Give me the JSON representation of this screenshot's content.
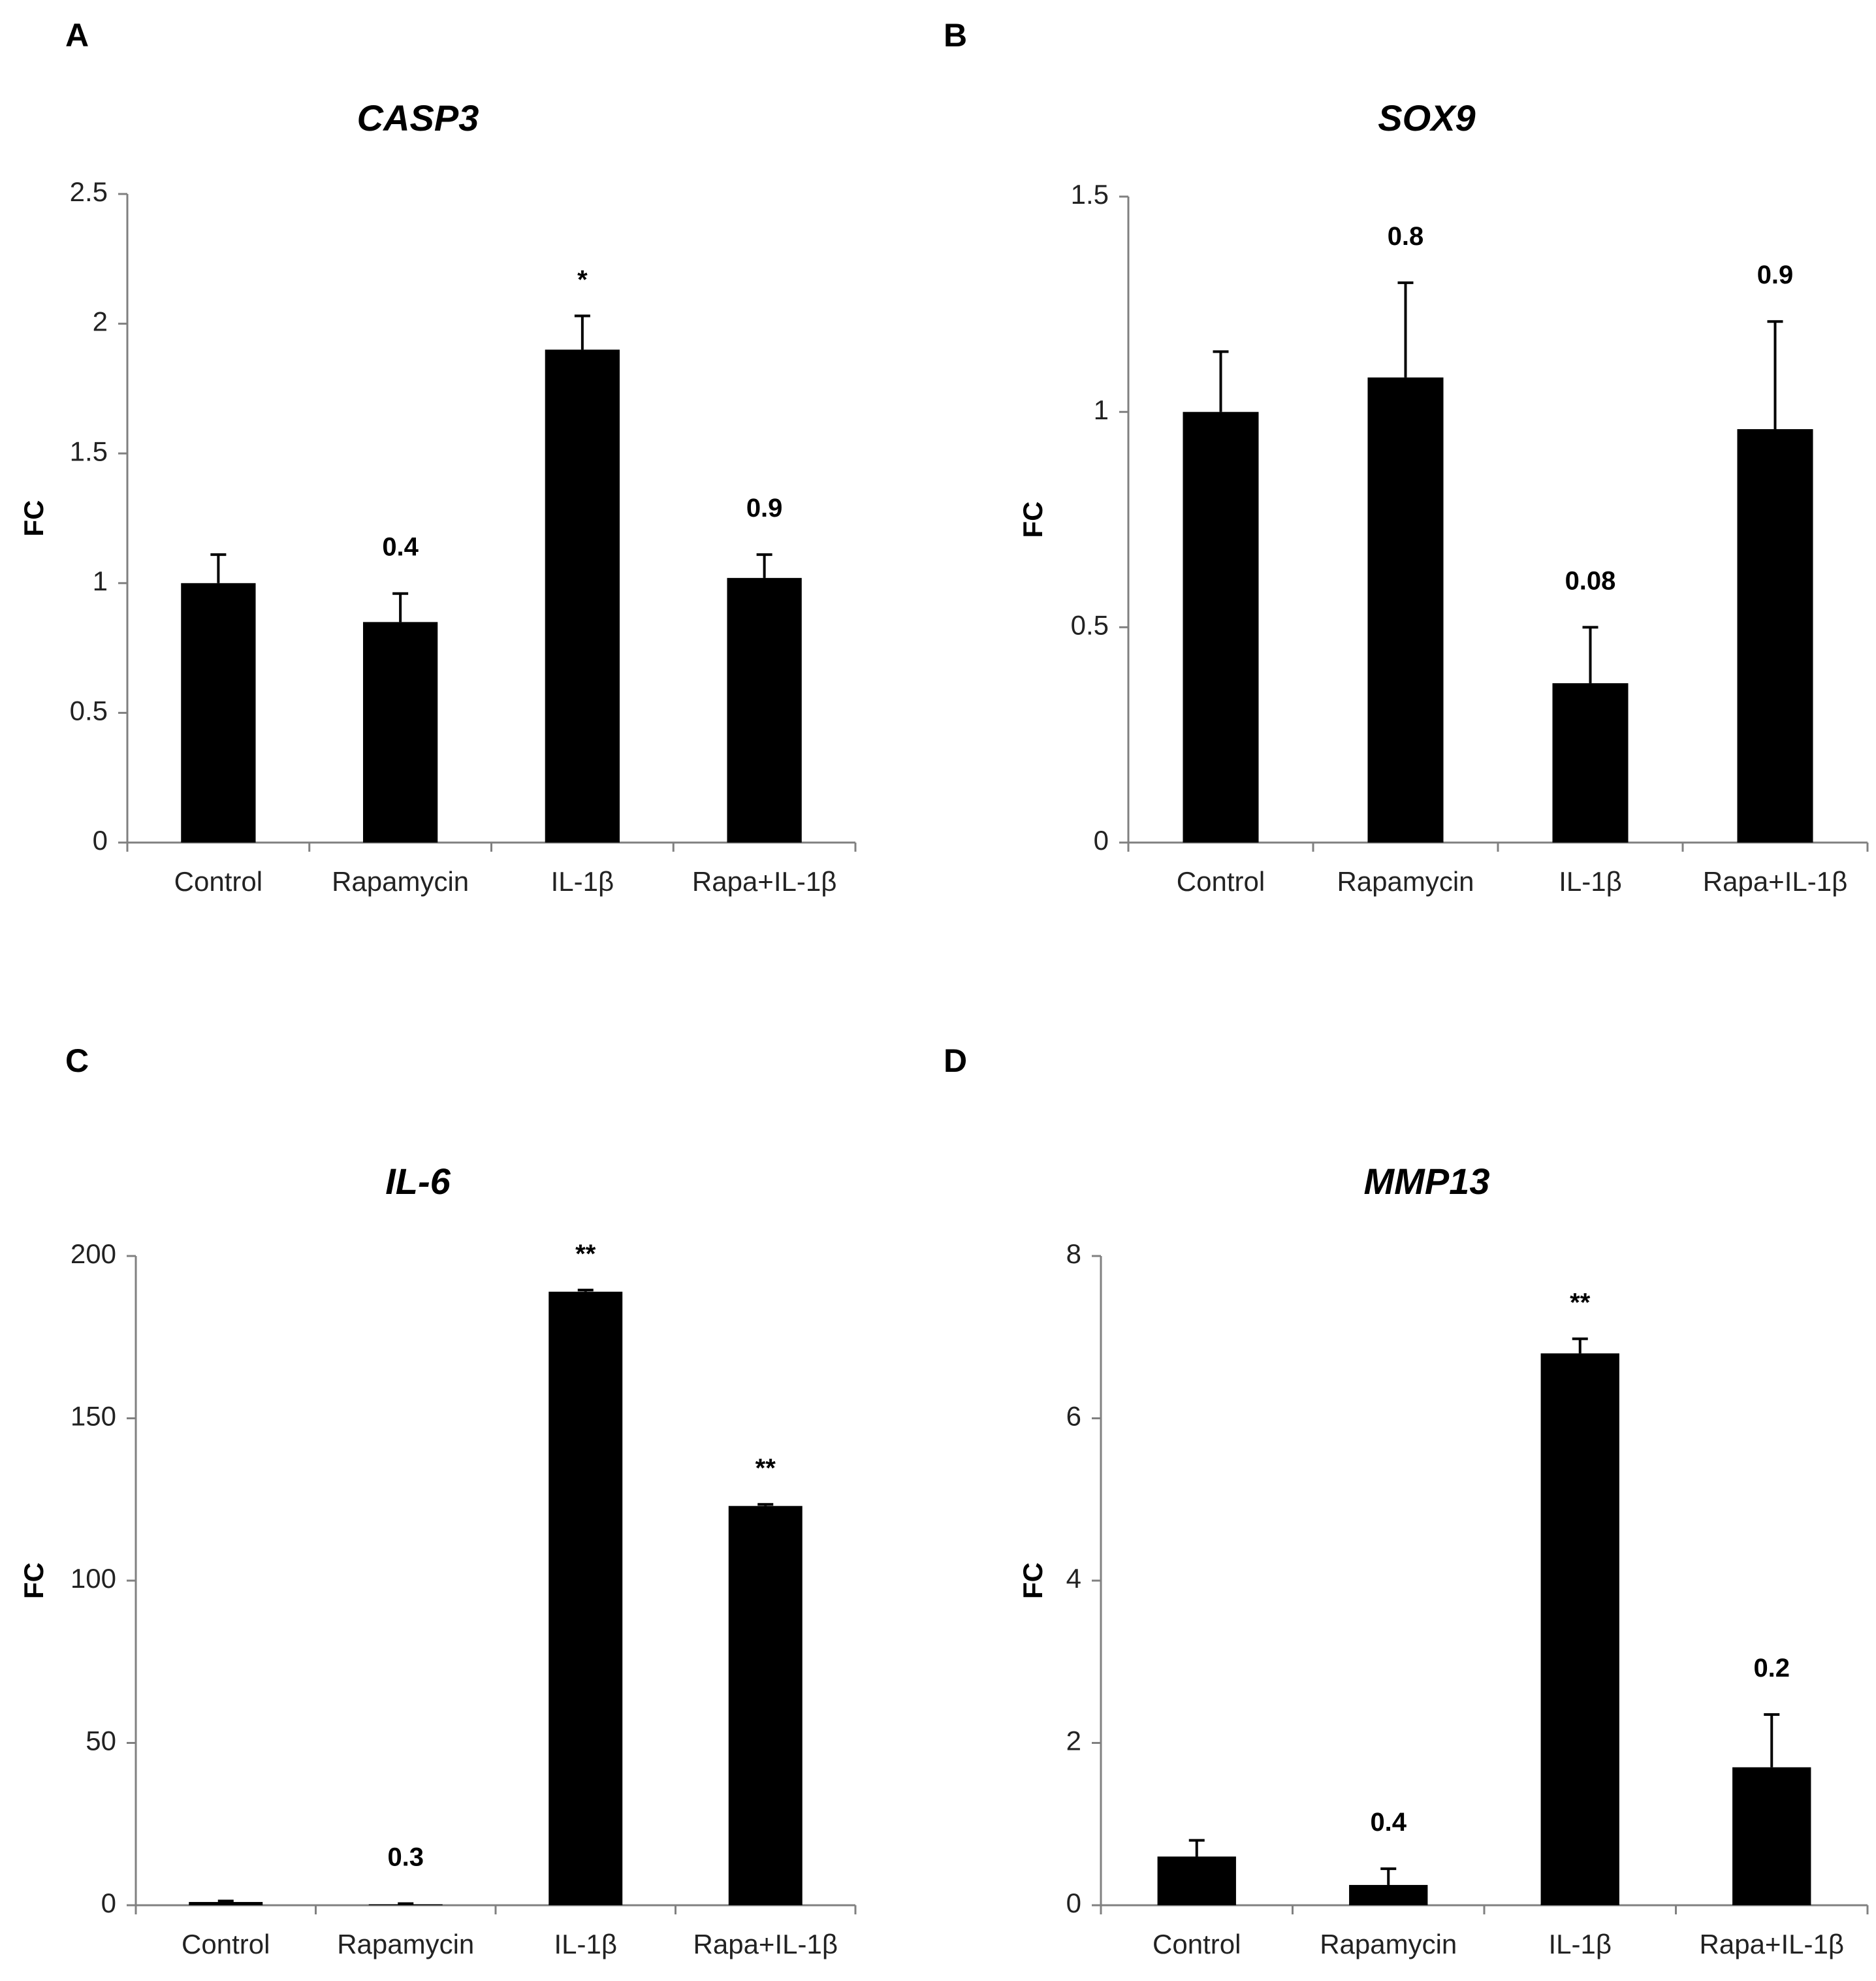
{
  "chart_data": [
    {
      "type": "bar",
      "panel": "A",
      "title": "CASP3",
      "ylabel": "FC",
      "ylim": [
        0,
        2.5
      ],
      "yticks": [
        "0",
        "0.5",
        "1",
        "1.5",
        "2",
        "2.5"
      ],
      "categories": [
        "Control",
        "Rapamycin",
        "IL-1β",
        "Rapa+IL-1β"
      ],
      "values": [
        1.0,
        0.85,
        1.9,
        1.02
      ],
      "errors": [
        0.11,
        0.11,
        0.13,
        0.09
      ],
      "annotations": [
        "",
        "0.4",
        "*",
        "0.9"
      ]
    },
    {
      "type": "bar",
      "panel": "B",
      "title": "SOX9",
      "ylabel": "FC",
      "ylim": [
        0,
        1.5
      ],
      "yticks": [
        "0",
        "0.5",
        "1",
        "1.5"
      ],
      "categories": [
        "Control",
        "Rapamycin",
        "IL-1β",
        "Rapa+IL-1β"
      ],
      "values": [
        1.0,
        1.08,
        0.37,
        0.96
      ],
      "errors": [
        0.14,
        0.22,
        0.13,
        0.25
      ],
      "annotations": [
        "",
        "0.8",
        "0.08",
        "0.9"
      ]
    },
    {
      "type": "bar",
      "panel": "C",
      "title": "IL-6",
      "ylabel": "FC",
      "ylim": [
        0,
        200
      ],
      "yticks": [
        "0",
        "50",
        "100",
        "150",
        "200"
      ],
      "categories": [
        "Control",
        "Rapamycin",
        "IL-1β",
        "Rapa+IL-1β"
      ],
      "values": [
        1.0,
        0.3,
        189,
        123
      ],
      "errors": [
        0.3,
        0.2,
        0.5,
        0.5
      ],
      "annotations": [
        "",
        "0.3",
        "**",
        "**"
      ]
    },
    {
      "type": "bar",
      "panel": "D",
      "title": "MMP13",
      "ylabel": "FC",
      "ylim": [
        0,
        8
      ],
      "yticks": [
        "0",
        "2",
        "4",
        "6",
        "8"
      ],
      "categories": [
        "Control",
        "Rapamycin",
        "IL-1β",
        "Rapa+IL-1β"
      ],
      "values": [
        0.6,
        0.25,
        6.8,
        1.7
      ],
      "errors": [
        0.2,
        0.2,
        0.18,
        0.65
      ],
      "annotations": [
        "",
        "0.4",
        "**",
        "0.2"
      ]
    }
  ]
}
